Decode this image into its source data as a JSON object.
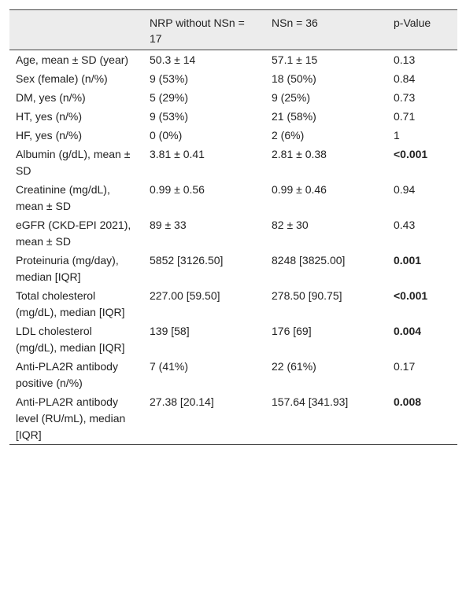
{
  "table": {
    "columns": [
      "NRP without NSn = 17",
      "NSn = 36",
      "p-Value"
    ],
    "rows": [
      {
        "label": "Age, mean ± SD (year)",
        "nrp": "50.3 ± 14",
        "ns": "57.1 ± 15",
        "p": "0.13",
        "p_bold": false
      },
      {
        "label": "Sex (female) (n/%)",
        "nrp": "9 (53%)",
        "ns": "18 (50%)",
        "p": "0.84",
        "p_bold": false
      },
      {
        "label": "DM, yes (n/%)",
        "nrp": "5 (29%)",
        "ns": "9 (25%)",
        "p": "0.73",
        "p_bold": false
      },
      {
        "label": "HT, yes (n/%)",
        "nrp": "9 (53%)",
        "ns": "21 (58%)",
        "p": "0.71",
        "p_bold": false
      },
      {
        "label": "HF, yes (n/%)",
        "nrp": "0 (0%)",
        "ns": "2 (6%)",
        "p": "1",
        "p_bold": false
      },
      {
        "label": "Albumin (g/dL), mean ± SD",
        "nrp": "3.81 ± 0.41",
        "ns": "2.81 ± 0.38",
        "p": "<0.001",
        "p_bold": true
      },
      {
        "label": "Creatinine (mg/dL), mean ± SD",
        "nrp": "0.99 ± 0.56",
        "ns": "0.99 ± 0.46",
        "p": "0.94",
        "p_bold": false
      },
      {
        "label": "eGFR (CKD-EPI 2021), mean ± SD",
        "nrp": "89 ± 33",
        "ns": "82 ± 30",
        "p": "0.43",
        "p_bold": false
      },
      {
        "label": "Proteinuria (mg/day), median [IQR]",
        "nrp": "5852 [3126.50]",
        "ns": "8248 [3825.00]",
        "p": "0.001",
        "p_bold": true
      },
      {
        "label": "Total cholesterol (mg/dL), median [IQR]",
        "nrp": "227.00 [59.50]",
        "ns": "278.50 [90.75]",
        "p": "<0.001",
        "p_bold": true
      },
      {
        "label": "LDL cholesterol (mg/dL), median [IQR]",
        "nrp": "139 [58]",
        "ns": "176 [69]",
        "p": "0.004",
        "p_bold": true
      },
      {
        "label": "Anti-PLA2R antibody positive (n/%)",
        "nrp": "7 (41%)",
        "ns": "22 (61%)",
        "p": "0.17",
        "p_bold": false
      },
      {
        "label": "Anti-PLA2R antibody level (RU/mL), median [IQR]",
        "nrp": "27.38 [20.14]",
        "ns": "157.64 [341.93]",
        "p": "0.008",
        "p_bold": true
      }
    ]
  }
}
